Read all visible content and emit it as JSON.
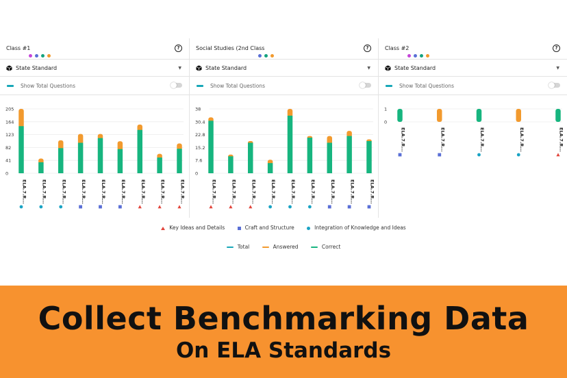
{
  "panels": [
    {
      "title": "Class #1",
      "dots": [
        "#c545d8",
        "#5a6fd6",
        "#14a37f",
        "#f29a2e"
      ],
      "selector": "State Standard",
      "toggle_label": "Show Total Questions",
      "chart_data": {
        "type": "bar",
        "stacked": true,
        "yticks": [
          "205",
          "164",
          "123",
          "82",
          "41",
          "0"
        ],
        "ymax": 205,
        "categories": [
          "ELA.7.R...",
          "ELA.7.R...",
          "ELA.7.R...",
          "ELA.7.R...",
          "ELA.7.R...",
          "ELA.7.R...",
          "ELA.7.R...",
          "ELA.7.R...",
          "ELA.7.R..."
        ],
        "markers": [
          "circle",
          "circle",
          "circle",
          "square",
          "square",
          "square",
          "triangle",
          "triangle",
          "triangle"
        ],
        "series": [
          {
            "name": "Correct",
            "values": [
              150,
              35,
              80,
              97,
              112,
              77,
              138,
              50,
              78
            ]
          },
          {
            "name": "Answered",
            "values": [
              55,
              12,
              25,
              28,
              13,
              25,
              17,
              12,
              17
            ]
          }
        ]
      }
    },
    {
      "title": "Social Studies (2nd Class",
      "dots": [
        "#5a6fd6",
        "#14a37f",
        "#f29a2e"
      ],
      "selector": "State Standard",
      "toggle_label": "Show Total Questions",
      "chart_data": {
        "type": "bar",
        "stacked": true,
        "yticks": [
          "38",
          "30.4",
          "22.8",
          "15.2",
          "7.6",
          "0"
        ],
        "ymax": 38,
        "categories": [
          "ELA.7.R...",
          "ELA.7.R...",
          "ELA.7.R...",
          "ELA.7.R...",
          "ELA.7.R...",
          "ELA.7.R...",
          "ELA.7.R...",
          "ELA.7.R...",
          "ELA.7.R..."
        ],
        "markers": [
          "triangle",
          "triangle",
          "triangle",
          "circle",
          "circle",
          "circle",
          "square",
          "square",
          "square"
        ],
        "series": [
          {
            "name": "Correct",
            "values": [
              31,
              10,
              18,
              6,
              34,
              21,
              18,
              22,
              19
            ]
          },
          {
            "name": "Answered",
            "values": [
              2,
              1,
              1,
              2,
              4,
              1,
              4,
              3,
              1
            ]
          }
        ]
      }
    },
    {
      "title": "Class #2",
      "dots": [
        "#c545d8",
        "#5a6fd6",
        "#14a37f",
        "#f29a2e"
      ],
      "selector": "State Standard",
      "toggle_label": "Show Total Questions",
      "chart_data": {
        "type": "bar",
        "stacked": true,
        "yticks": [
          "1",
          "0"
        ],
        "ymax": 1,
        "categories": [
          "ELA.7.R...",
          "ELA.7.R...",
          "ELA.7.R...",
          "ELA.7.R...",
          "ELA.7.R..."
        ],
        "markers": [
          "square",
          "square",
          "circle",
          "circle",
          "triangle"
        ],
        "series": [
          {
            "name": "Correct",
            "values": [
              1,
              0,
              1,
              0,
              1
            ]
          },
          {
            "name": "Answered",
            "values": [
              0,
              1,
              0,
              1,
              0
            ]
          }
        ]
      }
    }
  ],
  "legend_markers": [
    {
      "label": "Key Ideas and Details",
      "shape": "triangle",
      "color": "#e2453c"
    },
    {
      "label": "Craft and Structure",
      "shape": "square",
      "color": "#5a6fd6"
    },
    {
      "label": "Integration of Knowledge and Ideas",
      "shape": "circle",
      "color": "#1aa3c4"
    }
  ],
  "legend_series": [
    {
      "label": "Total",
      "color": "#17a7b8"
    },
    {
      "label": "Answered",
      "color": "#f29a2e"
    },
    {
      "label": "Correct",
      "color": "#17b57f"
    }
  ],
  "colors": {
    "correct": "#17b57f",
    "answered": "#f29a2e"
  },
  "banner": {
    "line1": "Collect Benchmarking Data",
    "line2": "On ELA Standards"
  }
}
